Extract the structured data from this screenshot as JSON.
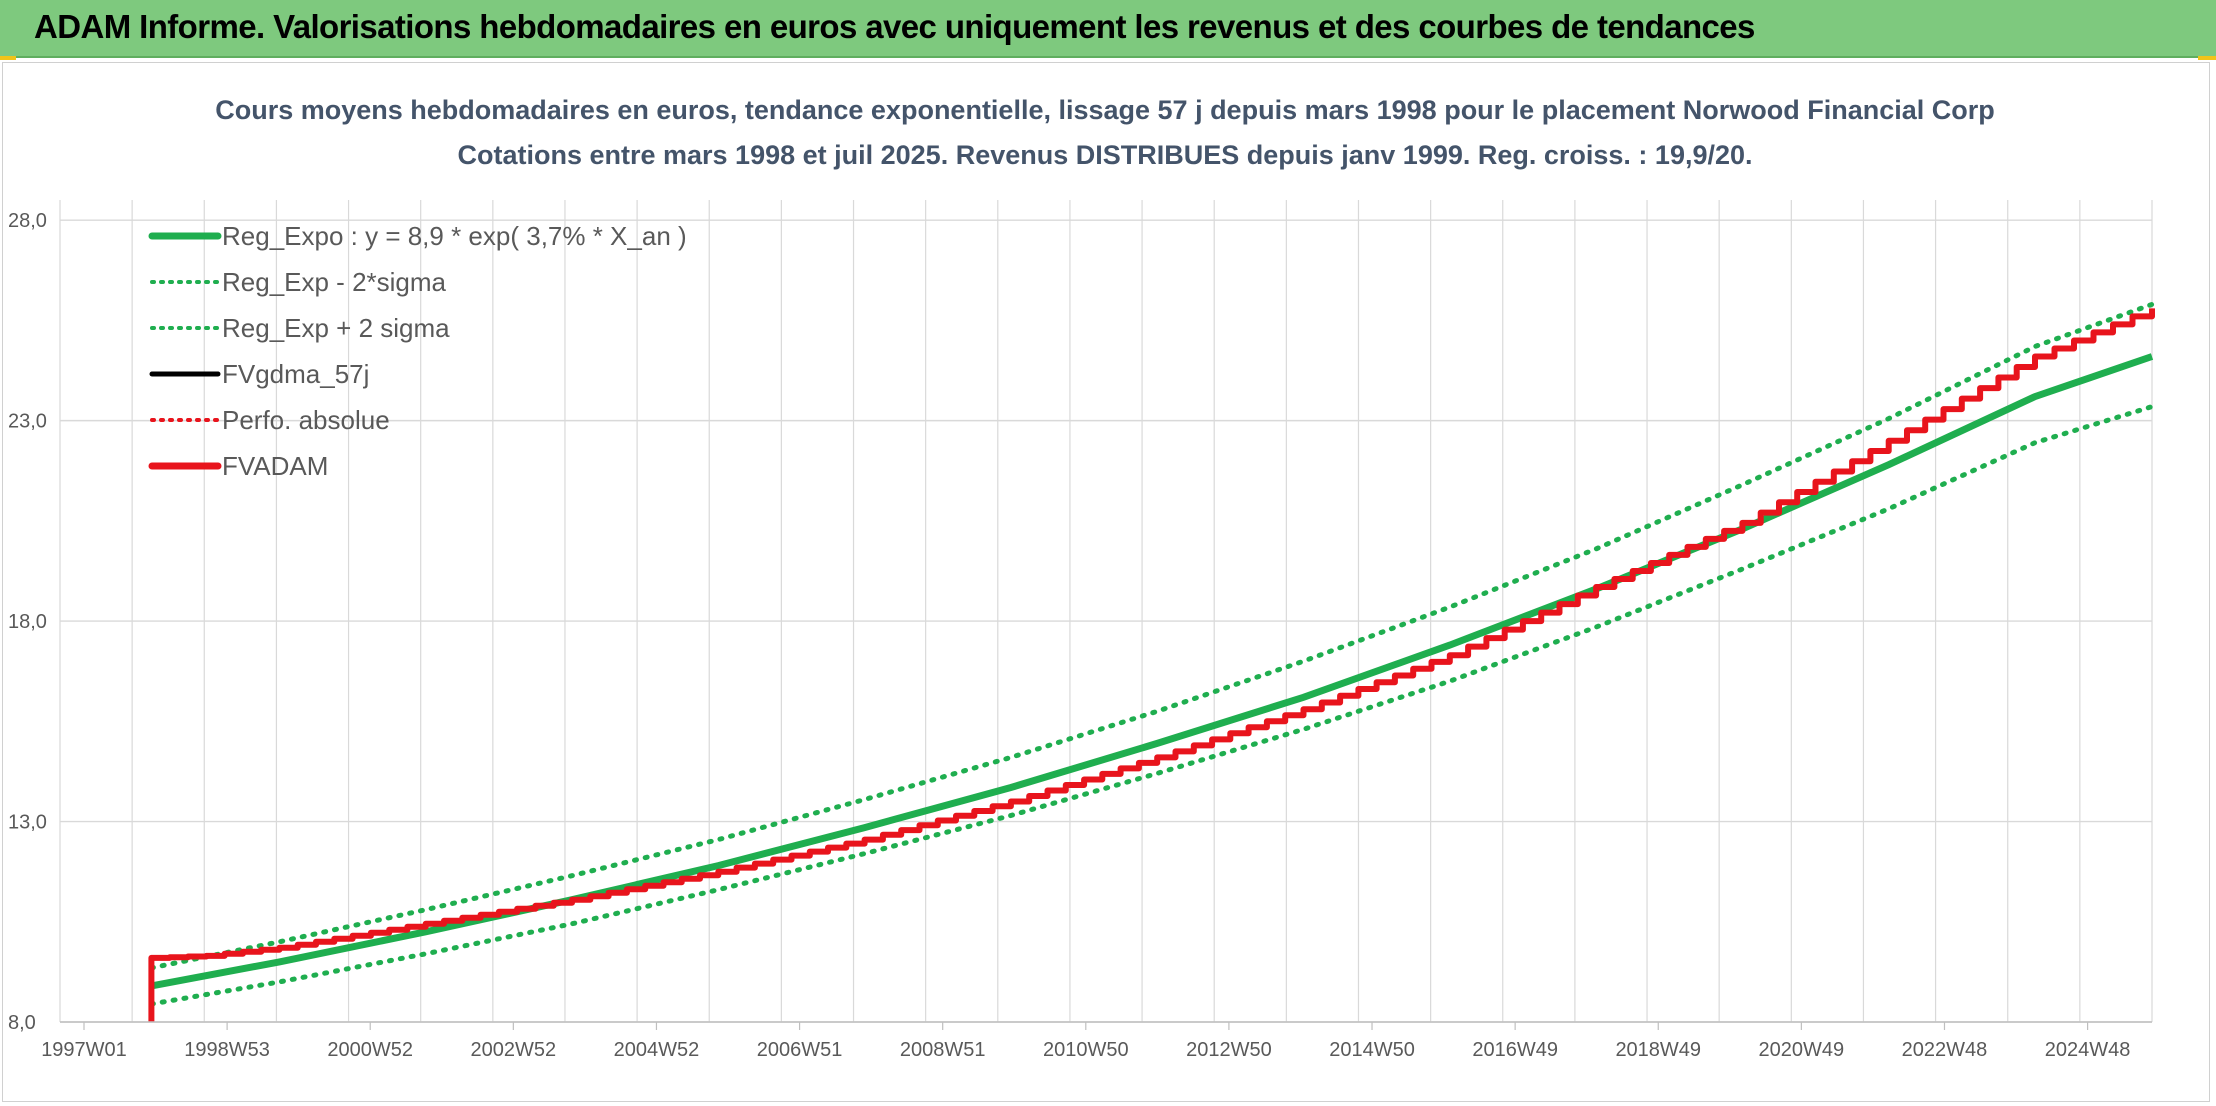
{
  "header": {
    "title": "ADAM Informe. Valorisations hebdomadaires en euros avec uniquement les revenus et des courbes de tendances"
  },
  "colors": {
    "header_bg": "#7ec97e",
    "reg_green": "#1fae4f",
    "adam_red": "#e8141c",
    "grid": "#d9d9d9"
  },
  "chart_data": {
    "type": "line",
    "title": "Cours moyens hebdomadaires en euros, tendance exponentielle, lissage 57 j depuis mars 1998 pour le placement Norwood Financial Corp",
    "subtitle": "Cotations entre mars 1998 et juil 2025. Revenus DISTRIBUES depuis janv 1999. Reg. croiss. : 19,9/20.",
    "xlabel": "",
    "ylabel": "",
    "x_ticks": [
      "1997W01",
      "1998W53",
      "2000W52",
      "2002W52",
      "2004W52",
      "2006W51",
      "2008W51",
      "2010W50",
      "2012W50",
      "2014W50",
      "2016W49",
      "2018W49",
      "2020W49",
      "2022W48",
      "2024W48"
    ],
    "x_range_years": [
      1997.0,
      2025.6
    ],
    "y_ticks": [
      "8,0",
      "13,0",
      "18,0",
      "23,0",
      "28,0"
    ],
    "y_tick_values": [
      8,
      13,
      18,
      23,
      28
    ],
    "ylim": [
      8,
      30
    ],
    "grid": true,
    "legend_position": "top-left",
    "legend": [
      {
        "label": "Reg_Expo : y = 8,9 * exp( 3,7% *  X_an )",
        "color": "#1fae4f",
        "style": "solid-thick"
      },
      {
        "label": "Reg_Exp - 2*sigma",
        "color": "#1fae4f",
        "style": "dotted"
      },
      {
        "label": "Reg_Exp + 2 sigma",
        "color": "#1fae4f",
        "style": "dotted"
      },
      {
        "label": "FVgdma_57j",
        "color": "#000000",
        "style": "solid"
      },
      {
        "label": "Perfo. absolue",
        "color": "#e8141c",
        "style": "dotted"
      },
      {
        "label": "FVADAM",
        "color": "#e8141c",
        "style": "solid-thick"
      }
    ],
    "series": [
      {
        "name": "Reg_Expo : y = 8,9 * exp( 3,7% *  X_an )",
        "x": [
          1998.25,
          2000.0,
          2002.0,
          2004.0,
          2006.0,
          2008.0,
          2010.0,
          2012.0,
          2014.0,
          2016.0,
          2018.0,
          2020.0,
          2022.0,
          2024.0,
          2025.6
        ],
        "y": [
          8.9,
          9.5,
          10.25,
          11.05,
          11.9,
          12.85,
          13.85,
          14.95,
          16.1,
          17.4,
          18.8,
          20.3,
          21.9,
          23.6,
          24.6
        ]
      },
      {
        "name": "Reg_Exp - 2*sigma",
        "x": [
          1998.25,
          2000.0,
          2002.0,
          2004.0,
          2006.0,
          2008.0,
          2010.0,
          2012.0,
          2014.0,
          2016.0,
          2018.0,
          2020.0,
          2022.0,
          2024.0,
          2025.6
        ],
        "y": [
          8.45,
          9.0,
          9.7,
          10.45,
          11.3,
          12.2,
          13.15,
          14.2,
          15.3,
          16.5,
          17.85,
          19.3,
          20.8,
          22.45,
          23.35
        ]
      },
      {
        "name": "Reg_Exp + 2 sigma",
        "x": [
          1998.25,
          2000.0,
          2002.0,
          2004.0,
          2006.0,
          2008.0,
          2010.0,
          2012.0,
          2014.0,
          2016.0,
          2018.0,
          2020.0,
          2022.0,
          2024.0,
          2025.6
        ],
        "y": [
          9.35,
          10.0,
          10.8,
          11.65,
          12.55,
          13.55,
          14.6,
          15.75,
          17.0,
          18.35,
          19.8,
          21.4,
          23.05,
          24.85,
          25.9
        ]
      },
      {
        "name": "FVADAM",
        "x": [
          1998.25,
          1998.25,
          1999.0,
          2000.0,
          2002.0,
          2004.0,
          2006.0,
          2008.0,
          2010.0,
          2012.0,
          2014.0,
          2016.0,
          2018.0,
          2020.0,
          2022.0,
          2024.0,
          2025.6
        ],
        "y": [
          8.0,
          9.6,
          9.65,
          9.85,
          10.45,
          11.05,
          11.75,
          12.55,
          13.5,
          14.6,
          15.8,
          17.15,
          18.85,
          20.45,
          22.5,
          24.6,
          25.8
        ]
      }
    ]
  }
}
